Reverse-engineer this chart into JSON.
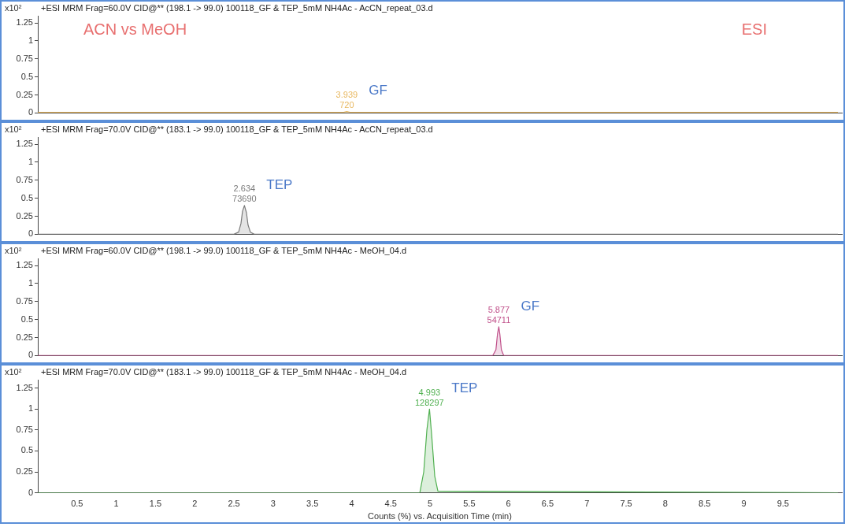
{
  "chart_data": [
    {
      "type": "area",
      "title": "+ESI MRM Frag=60.0V CID@** (198.1 -> 99.0) 100118_GF & TEP_5mM NH4Ac - AcCN_repeat_03.d",
      "ylabel": "x10²",
      "x": [
        0,
        3.9,
        3.939,
        3.98,
        10.2
      ],
      "series": [
        {
          "color": "#e8b860",
          "values": [
            0.01,
            0.01,
            0.02,
            0.01,
            0.01
          ]
        }
      ],
      "annotations": [
        "ACN vs MeOH",
        "ESI",
        {
          "text": "3.939\n720",
          "x": 3.939,
          "y": 0.02
        },
        "GF"
      ],
      "xlim": [
        0,
        10.25
      ],
      "xticks": [
        0.5,
        1,
        1.5,
        2,
        2.5,
        3,
        3.5,
        4,
        4.5,
        5,
        5.5,
        6,
        6.5,
        7,
        7.5,
        8,
        8.5,
        9,
        9.5
      ],
      "ylim": [
        0,
        1.35
      ],
      "yticks": [
        0,
        0.25,
        0.5,
        0.75,
        1,
        1.25
      ],
      "tick_labels": "y",
      "legend": false,
      "grid": false
    },
    {
      "type": "area",
      "title": "+ESI MRM Frag=70.0V CID@** (183.1 -> 99.0) 100118_GF & TEP_5mM NH4Ac - AcCN_repeat_03.d",
      "ylabel": "x10²",
      "x": [
        0,
        2.5,
        2.56,
        2.59,
        2.61,
        2.634,
        2.66,
        2.68,
        2.71,
        2.76,
        10.2
      ],
      "series": [
        {
          "color": "#7a7a7a",
          "values": [
            0,
            0,
            0.03,
            0.15,
            0.32,
            0.4,
            0.3,
            0.13,
            0.03,
            0,
            0
          ]
        }
      ],
      "annotations": [
        {
          "text": "2.634\n73690",
          "x": 2.634,
          "y": 0.4
        },
        "TEP"
      ],
      "xlim": [
        0,
        10.25
      ],
      "xticks": [
        0.5,
        1,
        1.5,
        2,
        2.5,
        3,
        3.5,
        4,
        4.5,
        5,
        5.5,
        6,
        6.5,
        7,
        7.5,
        8,
        8.5,
        9,
        9.5
      ],
      "ylim": [
        0,
        1.35
      ],
      "yticks": [
        0,
        0.25,
        0.5,
        0.75,
        1,
        1.25
      ],
      "tick_labels": "y",
      "legend": false,
      "grid": false
    },
    {
      "type": "area",
      "title": "+ESI MRM Frag=60.0V CID@** (198.1 -> 99.0) 100118_GF & TEP_5mM NH4Ac - MeOH_04.d",
      "ylabel": "x10²",
      "x": [
        0,
        5.8,
        5.84,
        5.86,
        5.877,
        5.89,
        5.91,
        5.94,
        10.2
      ],
      "series": [
        {
          "color": "#c0508a",
          "values": [
            0,
            0,
            0.08,
            0.3,
            0.4,
            0.3,
            0.08,
            0,
            0
          ]
        }
      ],
      "annotations": [
        {
          "text": "5.877\n54711",
          "x": 5.877,
          "y": 0.4
        },
        "GF"
      ],
      "xlim": [
        0,
        10.25
      ],
      "xticks": [
        0.5,
        1,
        1.5,
        2,
        2.5,
        3,
        3.5,
        4,
        4.5,
        5,
        5.5,
        6,
        6.5,
        7,
        7.5,
        8,
        8.5,
        9,
        9.5
      ],
      "ylim": [
        0,
        1.35
      ],
      "yticks": [
        0,
        0.25,
        0.5,
        0.75,
        1,
        1.25
      ],
      "tick_labels": "y",
      "legend": false,
      "grid": false
    },
    {
      "type": "area",
      "title": "+ESI MRM Frag=70.0V CID@** (183.1 -> 99.0) 100118_GF & TEP_5mM NH4Ac - MeOH_04.d",
      "ylabel": "x10²",
      "xlabel": "Counts (%) vs. Acquisition Time (min)",
      "x": [
        0,
        4.87,
        4.92,
        4.96,
        4.993,
        5.02,
        5.06,
        5.1,
        10.2
      ],
      "series": [
        {
          "color": "#50b050",
          "values": [
            0,
            0,
            0.25,
            0.75,
            1.0,
            0.7,
            0.2,
            0.02,
            0
          ]
        }
      ],
      "annotations": [
        {
          "text": "4.993\n128297",
          "x": 4.993,
          "y": 1.0
        },
        "TEP"
      ],
      "xlim": [
        0,
        10.25
      ],
      "xticks": [
        0.5,
        1,
        1.5,
        2,
        2.5,
        3,
        3.5,
        4,
        4.5,
        5,
        5.5,
        6,
        6.5,
        7,
        7.5,
        8,
        8.5,
        9,
        9.5
      ],
      "ylim": [
        0,
        1.35
      ],
      "yticks": [
        0,
        0.25,
        0.5,
        0.75,
        1,
        1.25
      ],
      "legend": false,
      "grid": false
    }
  ]
}
